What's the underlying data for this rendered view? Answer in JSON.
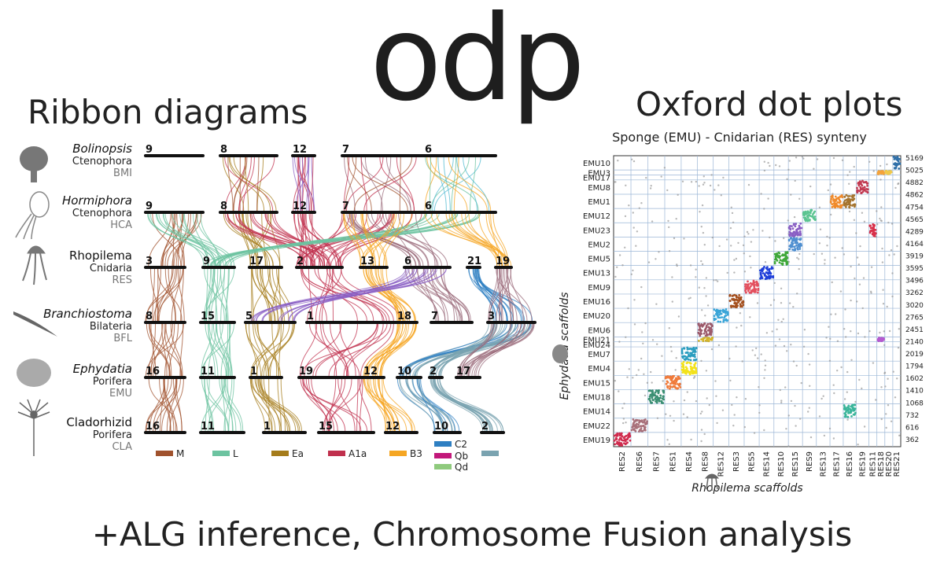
{
  "logo": "odp",
  "ribbon_title": "Ribbon diagrams",
  "dot_title": "Oxford dot plots",
  "footer": "+ALG inference, Chromosome Fusion analysis",
  "species": [
    {
      "name": "Bolinopsis",
      "italic": true,
      "phylum": "Ctenophora",
      "code": "BMI"
    },
    {
      "name": "Hormiphora",
      "italic": true,
      "phylum": "Ctenophora",
      "code": "HCA"
    },
    {
      "name": "Rhopilema",
      "italic": false,
      "phylum": "Cnidaria",
      "code": "RES"
    },
    {
      "name": "Branchiostoma",
      "italic": true,
      "phylum": "Bilateria",
      "code": "BFL"
    },
    {
      "name": "Ephydatia",
      "italic": true,
      "phylum": "Porifera",
      "code": "EMU"
    },
    {
      "name": "Cladorhizid",
      "italic": false,
      "phylum": "Porifera",
      "code": "CLA"
    }
  ],
  "chromosome_rows": [
    [
      "9",
      "8",
      "12",
      "7",
      "6"
    ],
    [
      "9",
      "8",
      "12",
      "7",
      "6"
    ],
    [
      "3",
      "9",
      "17",
      "2",
      "13",
      "6",
      "21",
      "19"
    ],
    [
      "8",
      "15",
      "5",
      "1",
      "18",
      "7",
      "3"
    ],
    [
      "16",
      "11",
      "1",
      "19",
      "12",
      "10",
      "2",
      "17"
    ],
    [
      "16",
      "11",
      "1",
      "15",
      "12",
      "10",
      "2"
    ]
  ],
  "legend": [
    {
      "label": "M",
      "color": "#a0522d"
    },
    {
      "label": "L",
      "color": "#6cc3a0"
    },
    {
      "label": "Ea",
      "color": "#a57c1b"
    },
    {
      "label": "A1a",
      "color": "#c0304d"
    },
    {
      "label": "B3",
      "color": "#f5a623"
    },
    {
      "label": "C2",
      "color": "#2e7fc2"
    },
    {
      "label": "Qb",
      "color": "#c2187a"
    },
    {
      "label": "Qd",
      "color": "#8fca7d"
    },
    {
      "label": "",
      "color": "#7aa3b0"
    }
  ],
  "chart_data": {
    "type": "scatter",
    "title": "Sponge (EMU) - Cnidarian (RES) synteny",
    "xlabel": "Rhopilema scaffolds",
    "ylabel": "Ephydatia scaffolds",
    "x_scaffolds": [
      "RES2",
      "RES6",
      "RES7",
      "RES1",
      "RES4",
      "RES8",
      "RES12",
      "RES3",
      "RES5",
      "RES14",
      "RES10",
      "RES15",
      "RES9",
      "RES13",
      "RES17",
      "RES16",
      "RES19",
      "RES11",
      "RES18",
      "RES20",
      "RES21"
    ],
    "y_scaffolds": [
      "EMU10",
      "EMU3",
      "EMU17",
      "EMU8",
      "EMU1",
      "EMU12",
      "EMU23",
      "EMU2",
      "EMU5",
      "EMU13",
      "EMU9",
      "EMU16",
      "EMU20",
      "EMU6",
      "EMU21",
      "EMU24",
      "EMU7",
      "EMU4",
      "EMU15",
      "EMU18",
      "EMU14",
      "EMU22",
      "EMU19"
    ],
    "y_ticks_right": [
      "5169",
      "5025",
      "4882",
      "4862",
      "4754",
      "4565",
      "4289",
      "4164",
      "3919",
      "3595",
      "3496",
      "3262",
      "3020",
      "2765",
      "2451",
      "2140",
      "2019",
      "1794",
      "1602",
      "1410",
      "1068",
      "732",
      "616",
      "362"
    ],
    "diagonal_blocks": [
      {
        "x": "RES2",
        "y": "EMU19",
        "color": "#d02c4e"
      },
      {
        "x": "RES6",
        "y": "EMU22",
        "color": "#a8707a"
      },
      {
        "x": "RES7",
        "y": "EMU18",
        "color": "#3a8f72"
      },
      {
        "x": "RES1",
        "y": "EMU15",
        "color": "#f07a3a"
      },
      {
        "x": "RES4",
        "y": "EMU4",
        "color": "#f3e21a"
      },
      {
        "x": "RES4",
        "y": "EMU7",
        "color": "#2a9dbf"
      },
      {
        "x": "RES8",
        "y": "EMU21",
        "color": "#d4b429"
      },
      {
        "x": "RES8",
        "y": "EMU6",
        "color": "#9c5a6b"
      },
      {
        "x": "RES12",
        "y": "EMU20",
        "color": "#3aa5d8"
      },
      {
        "x": "RES3",
        "y": "EMU16",
        "color": "#a4501f"
      },
      {
        "x": "RES5",
        "y": "EMU9",
        "color": "#e3505f"
      },
      {
        "x": "RES14",
        "y": "EMU13",
        "color": "#1f3fd9"
      },
      {
        "x": "RES10",
        "y": "EMU5",
        "color": "#3fa83a"
      },
      {
        "x": "RES15",
        "y": "EMU2",
        "color": "#4f8fd0"
      },
      {
        "x": "RES15",
        "y": "EMU23",
        "color": "#8a5fc4"
      },
      {
        "x": "RES9",
        "y": "EMU12",
        "color": "#5bc491"
      },
      {
        "x": "RES17",
        "y": "EMU1",
        "color": "#f08a2a"
      },
      {
        "x": "RES16",
        "y": "EMU1",
        "color": "#a5742f"
      },
      {
        "x": "RES19",
        "y": "EMU8",
        "color": "#c23a52"
      },
      {
        "x": "RES18",
        "y": "EMU3",
        "color": "#f5a33a"
      },
      {
        "x": "RES21",
        "y": "EMU10",
        "color": "#2f6fa8"
      },
      {
        "x": "RES20",
        "y": "EMU3",
        "color": "#f0c94a"
      },
      {
        "x": "RES11",
        "y": "EMU23",
        "color": "#d8304a"
      },
      {
        "x": "RES18",
        "y": "EMU21",
        "color": "#b55ad0"
      },
      {
        "x": "RES16",
        "y": "EMU14",
        "color": "#3ab59a"
      }
    ]
  }
}
